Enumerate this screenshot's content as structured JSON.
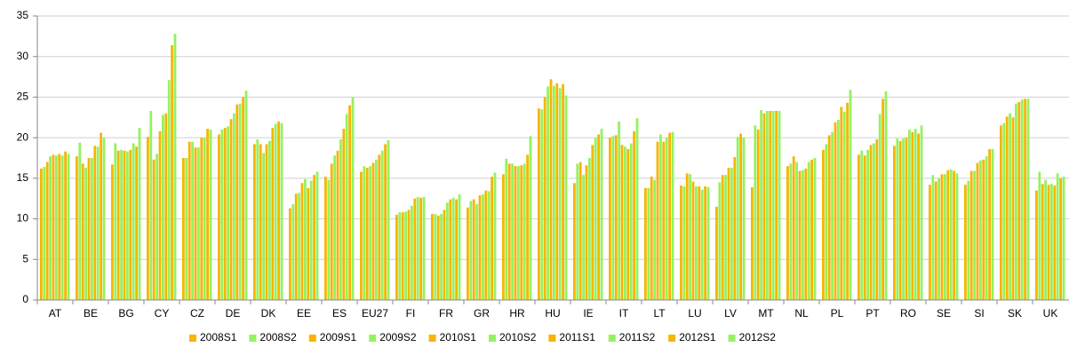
{
  "chart_data": {
    "type": "bar",
    "categories": [
      "AT",
      "BE",
      "BG",
      "CY",
      "CZ",
      "DE",
      "DK",
      "EE",
      "ES",
      "EU27",
      "FI",
      "FR",
      "GR",
      "HR",
      "HU",
      "IE",
      "IT",
      "LT",
      "LU",
      "LV",
      "MT",
      "NL",
      "PL",
      "PT",
      "RO",
      "SE",
      "SI",
      "SK",
      "UK"
    ],
    "series": [
      {
        "name": "2008S1",
        "color": "#f7b500",
        "values": [
          16.2,
          17.7,
          16.7,
          20.1,
          17.5,
          20.4,
          19.2,
          11.3,
          15.2,
          15.8,
          10.5,
          10.6,
          11.4,
          15.5,
          23.6,
          14.4,
          20.0,
          13.8,
          14.1,
          11.5,
          13.9,
          16.5,
          18.5,
          17.9,
          19.0,
          14.2,
          14.2,
          21.5,
          13.5
        ]
      },
      {
        "name": "2008S2",
        "color": "#95f25f",
        "values": [
          16.4,
          19.4,
          19.3,
          23.3,
          17.5,
          21.0,
          19.8,
          11.8,
          14.8,
          16.5,
          10.8,
          10.6,
          12.2,
          17.4,
          23.5,
          16.8,
          20.2,
          13.8,
          14.0,
          14.5,
          21.5,
          16.8,
          19.2,
          18.4,
          19.9,
          15.4,
          14.7,
          21.8,
          15.8
        ]
      },
      {
        "name": "2009S1",
        "color": "#f7b500",
        "values": [
          17.0,
          16.8,
          18.4,
          17.3,
          19.5,
          21.2,
          19.2,
          13.1,
          16.8,
          16.3,
          10.8,
          10.4,
          12.4,
          16.8,
          25.0,
          17.0,
          20.3,
          15.2,
          15.6,
          15.4,
          21.0,
          17.7,
          20.3,
          17.8,
          19.6,
          14.6,
          15.9,
          22.6,
          14.3
        ]
      },
      {
        "name": "2009S2",
        "color": "#95f25f",
        "values": [
          17.7,
          16.3,
          18.5,
          18.0,
          19.5,
          21.4,
          18.1,
          13.2,
          17.8,
          16.5,
          10.9,
          10.6,
          11.8,
          16.8,
          26.3,
          15.4,
          22.0,
          14.8,
          15.5,
          15.4,
          23.4,
          17.0,
          20.7,
          18.5,
          19.9,
          15.0,
          15.9,
          23.0,
          14.8
        ]
      },
      {
        "name": "2010S1",
        "color": "#f7b500",
        "values": [
          17.9,
          17.5,
          18.4,
          20.8,
          18.8,
          22.3,
          19.2,
          14.4,
          18.4,
          16.9,
          11.1,
          11.1,
          12.9,
          16.5,
          27.2,
          16.6,
          19.1,
          19.5,
          14.6,
          16.3,
          23.0,
          15.9,
          21.9,
          19.1,
          20.0,
          15.5,
          16.9,
          22.5,
          14.2
        ]
      },
      {
        "name": "2010S2",
        "color": "#95f25f",
        "values": [
          17.8,
          17.5,
          18.3,
          22.8,
          18.8,
          23.0,
          19.6,
          14.9,
          19.8,
          17.3,
          11.6,
          12.0,
          13.0,
          16.5,
          26.4,
          17.5,
          18.9,
          20.4,
          14.0,
          16.3,
          23.3,
          16.0,
          22.2,
          19.3,
          21.0,
          15.5,
          17.2,
          24.2,
          14.3
        ]
      },
      {
        "name": "2011S1",
        "color": "#f7b500",
        "values": [
          18.0,
          19.0,
          18.5,
          23.0,
          20.0,
          24.1,
          21.2,
          13.8,
          21.1,
          17.9,
          12.5,
          12.4,
          13.5,
          16.6,
          26.7,
          19.1,
          18.6,
          19.5,
          14.0,
          17.6,
          23.3,
          16.2,
          23.8,
          19.8,
          20.7,
          16.0,
          17.3,
          24.4,
          14.1
        ]
      },
      {
        "name": "2011S2",
        "color": "#95f25f",
        "values": [
          17.8,
          18.9,
          19.3,
          27.1,
          20.0,
          24.2,
          21.7,
          14.7,
          22.9,
          18.4,
          12.7,
          12.6,
          13.4,
          16.8,
          26.1,
          20.0,
          19.3,
          20.0,
          13.6,
          20.1,
          23.3,
          17.0,
          23.2,
          22.9,
          21.1,
          16.1,
          17.7,
          24.7,
          15.6
        ]
      },
      {
        "name": "2012S1",
        "color": "#f7b500",
        "values": [
          18.3,
          20.6,
          18.9,
          31.4,
          21.1,
          25.0,
          22.0,
          15.4,
          24.0,
          19.2,
          12.6,
          12.4,
          15.2,
          17.9,
          26.6,
          20.4,
          20.8,
          20.6,
          14.0,
          20.5,
          23.3,
          17.3,
          24.3,
          24.8,
          20.5,
          15.9,
          18.6,
          24.8,
          15.0
        ]
      },
      {
        "name": "2012S2",
        "color": "#95f25f",
        "values": [
          18.0,
          20.0,
          21.2,
          32.8,
          21.0,
          25.8,
          21.8,
          15.8,
          25.0,
          19.7,
          12.7,
          13.0,
          15.7,
          20.2,
          25.2,
          21.1,
          22.4,
          20.7,
          13.9,
          20.0,
          23.3,
          17.5,
          25.9,
          25.7,
          21.5,
          15.6,
          18.6,
          24.8,
          15.2
        ]
      }
    ],
    "ylim": [
      0,
      35
    ],
    "yticks": [
      0,
      5,
      10,
      15,
      20,
      25,
      30,
      35
    ],
    "grid": true,
    "legend": "bottom"
  }
}
